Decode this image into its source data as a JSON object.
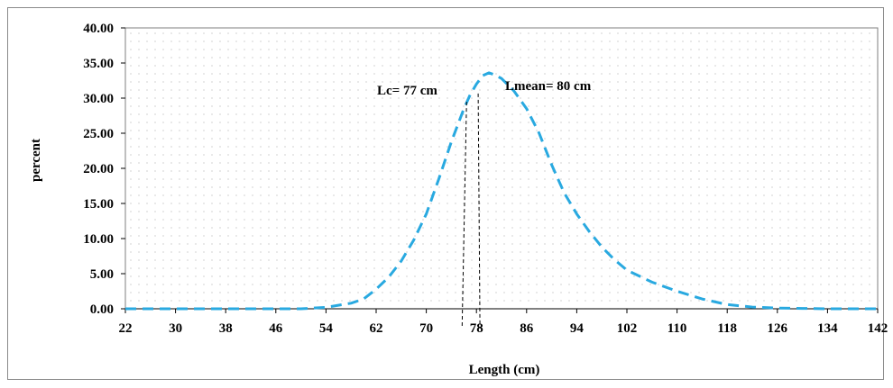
{
  "chart_data": {
    "type": "line",
    "xlabel": "Length (cm)",
    "ylabel": "percent",
    "ylim": [
      0,
      40
    ],
    "yticks": [
      "0.00",
      "5.00",
      "10.00",
      "15.00",
      "20.00",
      "25.00",
      "30.00",
      "35.00",
      "40.00"
    ],
    "xticks": [
      "22",
      "30",
      "38",
      "46",
      "54",
      "62",
      "70",
      "78",
      "86",
      "94",
      "102",
      "110",
      "118",
      "126",
      "134",
      "142"
    ],
    "xlim": [
      22,
      142
    ],
    "grid": "dotted",
    "series": [
      {
        "color": "#29a9e0",
        "style": "dashed",
        "x": [
          22,
          30,
          38,
          46,
          50,
          54,
          58,
          60,
          62,
          64,
          66,
          68,
          70,
          72,
          74,
          76,
          77,
          78,
          79,
          80,
          81,
          82,
          84,
          86,
          88,
          90,
          92,
          94,
          96,
          98,
          100,
          102,
          106,
          110,
          114,
          118,
          122,
          126,
          130,
          134,
          138,
          142
        ],
        "y": [
          0,
          0,
          0,
          0,
          0,
          0.2,
          0.8,
          1.4,
          2.8,
          4.5,
          6.8,
          9.8,
          13.5,
          18.5,
          23.8,
          28.5,
          30.5,
          32.0,
          33.2,
          33.6,
          33.3,
          32.8,
          31.0,
          28.5,
          25.0,
          20.5,
          16.5,
          13.5,
          11.0,
          8.8,
          7.0,
          5.5,
          3.8,
          2.5,
          1.4,
          0.6,
          0.25,
          0.1,
          0.05,
          0,
          0,
          0
        ]
      }
    ],
    "annotations": [
      {
        "label": "Lc= 77 cm",
        "x": 77
      },
      {
        "label": "Lmean= 80 cm",
        "x": 80
      }
    ]
  }
}
